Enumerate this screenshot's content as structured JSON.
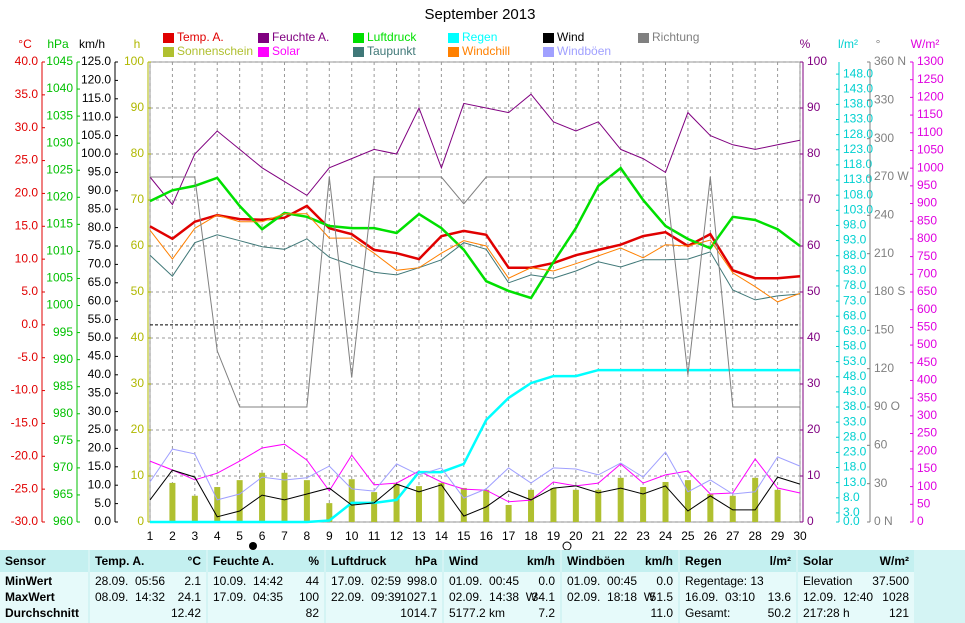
{
  "chart_data": {
    "type": "line",
    "title": "September 2013",
    "categories": [
      "1",
      "2",
      "3",
      "4",
      "5",
      "6",
      "7",
      "8",
      "9",
      "10",
      "11",
      "12",
      "13",
      "14",
      "15",
      "16",
      "17",
      "18",
      "19",
      "20",
      "21",
      "22",
      "23",
      "24",
      "25",
      "26",
      "27",
      "28",
      "29",
      "30"
    ],
    "grid": true,
    "grid_axis": "h",
    "axes": [
      {
        "unit": "°C",
        "color": "#e00000",
        "lim": [
          -30,
          40
        ],
        "ticks": [
          {
            "value": -30,
            "label": "-30.0"
          },
          {
            "value": -25,
            "label": "-25.0"
          },
          {
            "value": -20,
            "label": "-20.0"
          },
          {
            "value": -15,
            "label": "-15.0"
          },
          {
            "value": -10,
            "label": "-10.0"
          },
          {
            "value": -5,
            "label": "-5.0"
          },
          {
            "value": 0,
            "label": "0.0"
          },
          {
            "value": 5,
            "label": "5.0"
          },
          {
            "value": 10,
            "label": "10.0"
          },
          {
            "value": 15,
            "label": "15.0"
          },
          {
            "value": 20,
            "label": "20.0"
          },
          {
            "value": 25,
            "label": "25.0"
          },
          {
            "value": 30,
            "label": "30.0"
          },
          {
            "value": 35,
            "label": "35.0"
          },
          {
            "value": 40,
            "label": "40.0"
          }
        ]
      },
      {
        "unit": "hPa",
        "color": "#00c000",
        "lim": [
          960,
          1045
        ],
        "ticks": [
          960,
          965,
          970,
          975,
          980,
          985,
          990,
          995,
          1000,
          1005,
          1010,
          1015,
          1020,
          1025,
          1030,
          1035,
          1040,
          1045
        ]
      },
      {
        "unit": "km/h",
        "color": "#000000",
        "lim": [
          0,
          125
        ],
        "ticks": [
          {
            "value": 0,
            "label": "0.0"
          },
          {
            "value": 5,
            "label": "5.0"
          },
          {
            "value": 10,
            "label": "10.0"
          },
          {
            "value": 15,
            "label": "15.0"
          },
          {
            "value": 20,
            "label": "20.0"
          },
          {
            "value": 25,
            "label": "25.0"
          },
          {
            "value": 30,
            "label": "30.0"
          },
          {
            "value": 35,
            "label": "35.0"
          },
          {
            "value": 40,
            "label": "40.0"
          },
          {
            "value": 45,
            "label": "45.0"
          },
          {
            "value": 50,
            "label": "50.0"
          },
          {
            "value": 55,
            "label": "55.0"
          },
          {
            "value": 60,
            "label": "60.0"
          },
          {
            "value": 65,
            "label": "65.0"
          },
          {
            "value": 70,
            "label": "70.0"
          },
          {
            "value": 75,
            "label": "75.0"
          },
          {
            "value": 80,
            "label": "80.0"
          },
          {
            "value": 85,
            "label": "85.0"
          },
          {
            "value": 90,
            "label": "90.0"
          },
          {
            "value": 95,
            "label": "95.0"
          },
          {
            "value": 100,
            "label": "100.0"
          },
          {
            "value": 105,
            "label": "105.0"
          },
          {
            "value": 110,
            "label": "110.0"
          },
          {
            "value": 115,
            "label": "115.0"
          },
          {
            "value": 120,
            "label": "120.0"
          },
          {
            "value": 125,
            "label": "125.0"
          }
        ]
      },
      {
        "unit": "h",
        "color": "#b0b800",
        "lim": [
          0,
          100
        ],
        "ticks": [
          0,
          10,
          20,
          30,
          40,
          50,
          60,
          70,
          80,
          90,
          100
        ]
      },
      {
        "unit": "%",
        "color": "#800080",
        "lim": [
          0,
          100
        ],
        "ticks": [
          0,
          10,
          20,
          30,
          40,
          50,
          60,
          70,
          80,
          90,
          100
        ]
      },
      {
        "unit": "l/m²",
        "color": "#00d0d0",
        "lim": [
          0,
          152
        ],
        "ticks": [
          {
            "value": 0,
            "label": "0.0"
          },
          {
            "value": 3,
            "label": "3.0"
          },
          {
            "value": 8,
            "label": "8.0"
          },
          {
            "value": 13,
            "label": "13.0"
          },
          {
            "value": 18,
            "label": "18.0"
          },
          {
            "value": 23,
            "label": "23.0"
          },
          {
            "value": 28,
            "label": "28.0"
          },
          {
            "value": 33,
            "label": "33.0"
          },
          {
            "value": 38,
            "label": "38.0"
          },
          {
            "value": 43,
            "label": "43.0"
          },
          {
            "value": 48,
            "label": "48.0"
          },
          {
            "value": 53,
            "label": "53.0"
          },
          {
            "value": 58,
            "label": "58.0"
          },
          {
            "value": 63,
            "label": "63.0"
          },
          {
            "value": 68,
            "label": "68.0"
          },
          {
            "value": 73,
            "label": "73.0"
          },
          {
            "value": 78,
            "label": "78.0"
          },
          {
            "value": 83,
            "label": "83.0"
          },
          {
            "value": 88,
            "label": "88.0"
          },
          {
            "value": 93,
            "label": "93.0"
          },
          {
            "value": 98,
            "label": "98.0"
          },
          {
            "value": 103,
            "label": "103.0"
          },
          {
            "value": 108,
            "label": "108.0"
          },
          {
            "value": 113,
            "label": "113.0"
          },
          {
            "value": 118,
            "label": "118.0"
          },
          {
            "value": 123,
            "label": "123.0"
          },
          {
            "value": 128,
            "label": "128.0"
          },
          {
            "value": 133,
            "label": "133.0"
          },
          {
            "value": 138,
            "label": "138.0"
          },
          {
            "value": 143,
            "label": "143.0"
          },
          {
            "value": 148,
            "label": "148.0"
          }
        ]
      },
      {
        "unit": "°",
        "color": "#808080",
        "lim": [
          0,
          360
        ],
        "ticks": [
          {
            "value": 0,
            "label": "0 N"
          },
          30,
          60,
          {
            "value": 90,
            "label": "90 O"
          },
          120,
          150,
          {
            "value": 180,
            "label": "180 S"
          },
          210,
          240,
          {
            "value": 270,
            "label": "270 W"
          },
          300,
          330,
          {
            "value": 360,
            "label": "360 N"
          }
        ]
      },
      {
        "unit": "W/m²",
        "color": "#e000e0",
        "lim": [
          0,
          1300
        ],
        "ticks": [
          0,
          50,
          100,
          150,
          200,
          250,
          300,
          350,
          400,
          450,
          500,
          550,
          600,
          650,
          700,
          750,
          800,
          850,
          900,
          950,
          1000,
          1050,
          1100,
          1150,
          1200,
          1250,
          1300
        ]
      }
    ],
    "series": [
      {
        "name": "Temp. A.",
        "color": "#e00000",
        "axis": "°C",
        "width": 2.5,
        "values": [
          15.0,
          13.1,
          15.7,
          16.7,
          16.1,
          16.0,
          16.3,
          18.1,
          14.7,
          13.8,
          11.4,
          10.9,
          10.0,
          13.5,
          14.3,
          13.7,
          8.7,
          8.7,
          9.4,
          10.6,
          11.4,
          12.2,
          13.5,
          14.1,
          12.0,
          13.8,
          8.3,
          7.1,
          7.1,
          7.4
        ]
      },
      {
        "name": "Sonnenschein",
        "color": "#b0c030",
        "axis": "h",
        "kind": "bar",
        "values": [
          0,
          8.5,
          5.7,
          7.6,
          9.1,
          10.7,
          10.7,
          9.1,
          4.1,
          9.3,
          6.5,
          8.3,
          7.8,
          8.5,
          7.4,
          7.0,
          3.7,
          7.0,
          7.4,
          7.0,
          7.0,
          9.6,
          7.6,
          8.7,
          9.1,
          6.1,
          5.7,
          9.6,
          7.0,
          0
        ]
      },
      {
        "name": "Feuchte A.",
        "color": "#800080",
        "axis": "%",
        "width": 1,
        "values": [
          75,
          69,
          80,
          85,
          81,
          77,
          74,
          71,
          77,
          79,
          81,
          80,
          90,
          77,
          91,
          90,
          89,
          93,
          87,
          85,
          87,
          81,
          79,
          76,
          89,
          84,
          82,
          81,
          82,
          83
        ]
      },
      {
        "name": "Solar",
        "color": "#ff00ff",
        "axis": "W/m²",
        "width": 1,
        "values": [
          172,
          147,
          119,
          138,
          172,
          209,
          220,
          175,
          88,
          189,
          105,
          110,
          144,
          113,
          93,
          90,
          57,
          62,
          113,
          102,
          110,
          164,
          110,
          133,
          144,
          79,
          82,
          178,
          96,
          82
        ]
      },
      {
        "name": "Luftdruck",
        "color": "#00e000",
        "axis": "hPa",
        "width": 2.5,
        "values": [
          1019.3,
          1021.3,
          1022.1,
          1023.6,
          1018.4,
          1014.1,
          1017.1,
          1016.4,
          1014.7,
          1014.3,
          1014.3,
          1013.4,
          1016.9,
          1014.3,
          1010.3,
          1004.5,
          1002.7,
          1001.4,
          1008.0,
          1014.3,
          1022.1,
          1025.4,
          1019.5,
          1014.7,
          1012.3,
          1010.6,
          1016.4,
          1015.8,
          1014.1,
          1011.0
        ]
      },
      {
        "name": "Taupunkt",
        "color": "#407878",
        "axis": "°C",
        "width": 1,
        "values": [
          10.6,
          7.4,
          12.5,
          13.7,
          12.8,
          11.9,
          11.5,
          13.1,
          10.3,
          9.1,
          8.0,
          7.6,
          8.7,
          9.9,
          12.5,
          11.5,
          6.4,
          7.6,
          7.1,
          8.2,
          9.6,
          8.8,
          9.9,
          9.9,
          10.0,
          11.1,
          5.3,
          3.8,
          4.4,
          4.7
        ]
      },
      {
        "name": "Regen",
        "color": "#00ffff",
        "axis": "l/m²",
        "width": 2.5,
        "values": [
          0,
          0,
          0,
          0,
          0,
          0,
          0,
          0,
          0.5,
          6.3,
          6.3,
          7.3,
          16.5,
          16.5,
          19.2,
          33.7,
          41.0,
          45.9,
          48.2,
          48.2,
          50.2,
          50.2,
          50.2,
          50.2,
          50.2,
          50.2,
          50.2,
          50.2,
          50.2,
          50.2
        ]
      },
      {
        "name": "Windchill",
        "color": "#ff8000",
        "axis": "°C",
        "width": 1,
        "values": [
          14.4,
          10.0,
          14.7,
          16.7,
          15.7,
          15.7,
          16.9,
          16.9,
          13.2,
          13.2,
          10.9,
          8.3,
          8.7,
          10.9,
          12.8,
          12.0,
          7.1,
          8.7,
          8.2,
          9.3,
          10.5,
          11.7,
          10.2,
          12.2,
          12.0,
          12.9,
          7.9,
          5.8,
          3.5,
          4.8
        ]
      },
      {
        "name": "Wind",
        "color": "#000000",
        "axis": "km/h",
        "width": 1,
        "values": [
          6.0,
          14.1,
          12.2,
          1.4,
          3.0,
          7.3,
          6.0,
          7.6,
          9.2,
          4.6,
          5.2,
          10.3,
          8.2,
          10.1,
          1.6,
          4.1,
          8.4,
          6.0,
          9.2,
          9.8,
          7.9,
          9.2,
          7.6,
          9.8,
          3.0,
          7.1,
          3.3,
          3.3,
          12.2,
          10.3
        ]
      },
      {
        "name": "Windböen",
        "color": "#a0a0ff",
        "axis": "km/h",
        "width": 1,
        "values": [
          10.9,
          19.8,
          18.5,
          6.0,
          7.6,
          12.2,
          11.4,
          12.0,
          15.2,
          9.0,
          8.4,
          15.8,
          12.8,
          14.7,
          6.5,
          9.0,
          14.7,
          10.6,
          14.7,
          14.4,
          12.8,
          16.0,
          12.2,
          19.0,
          8.2,
          11.4,
          7.6,
          8.2,
          17.7,
          15.2
        ]
      },
      {
        "name": "Richtung",
        "color": "#808080",
        "axis": "°",
        "width": 1,
        "values": [
          270,
          270,
          270,
          134,
          90,
          90,
          90,
          90,
          270,
          113,
          270,
          270,
          270,
          270,
          249,
          270,
          270,
          270,
          270,
          270,
          270,
          270,
          270,
          270,
          115,
          270,
          90,
          90,
          90,
          90
        ]
      }
    ]
  },
  "table": {
    "columns": [
      {
        "title": "Sensor",
        "rows": [
          {
            "left": "MinWert"
          },
          {
            "left": "MaxWert"
          },
          {
            "left": "Durchschnitt"
          }
        ]
      },
      {
        "title": "Temp. A.",
        "unit": "°C",
        "rows": [
          {
            "left": "28.09.  05:56",
            "right": "2.1"
          },
          {
            "left": "08.09.  14:32",
            "right": "24.1"
          },
          {
            "right": "12.42"
          }
        ]
      },
      {
        "title": "Feuchte A.",
        "unit": "%",
        "rows": [
          {
            "left": "10.09.  14:42",
            "right": "44"
          },
          {
            "left": "17.09.  04:35",
            "right": "100"
          },
          {
            "right": "82"
          }
        ]
      },
      {
        "title": "Luftdruck",
        "unit": "hPa",
        "rows": [
          {
            "left": "17.09.  02:59",
            "right": "998.0"
          },
          {
            "left": "22.09.  09:39",
            "right": "1027.1"
          },
          {
            "right": "1014.7"
          }
        ]
      },
      {
        "title": "Wind",
        "unit": "km/h",
        "rows": [
          {
            "left": "01.09.  00:45",
            "right": "0.0"
          },
          {
            "left": "02.09.  14:38  W",
            "right": "34.1"
          },
          {
            "left": "5177.2 km",
            "right": "7.2"
          }
        ]
      },
      {
        "title": "Windböen",
        "unit": "km/h",
        "rows": [
          {
            "left": "01.09.  00:45",
            "right": "0.0"
          },
          {
            "left": "02.09.  18:18  W",
            "right": "51.5"
          },
          {
            "right": "11.0"
          }
        ]
      },
      {
        "title": "Regen",
        "unit": "l/m²",
        "rows": [
          {
            "left": "Regentage: 13"
          },
          {
            "left": "16.09.  03:10",
            "right": "13.6"
          },
          {
            "left": "Gesamt:",
            "right": "50.2"
          }
        ]
      },
      {
        "title": "Solar",
        "unit": "W/m²",
        "rows": [
          {
            "left": "Elevation",
            "right": "37.500"
          },
          {
            "left": "12.09.  12:40",
            "right": "1028"
          },
          {
            "left": "217:28 h",
            "right": "121"
          }
        ]
      }
    ]
  }
}
